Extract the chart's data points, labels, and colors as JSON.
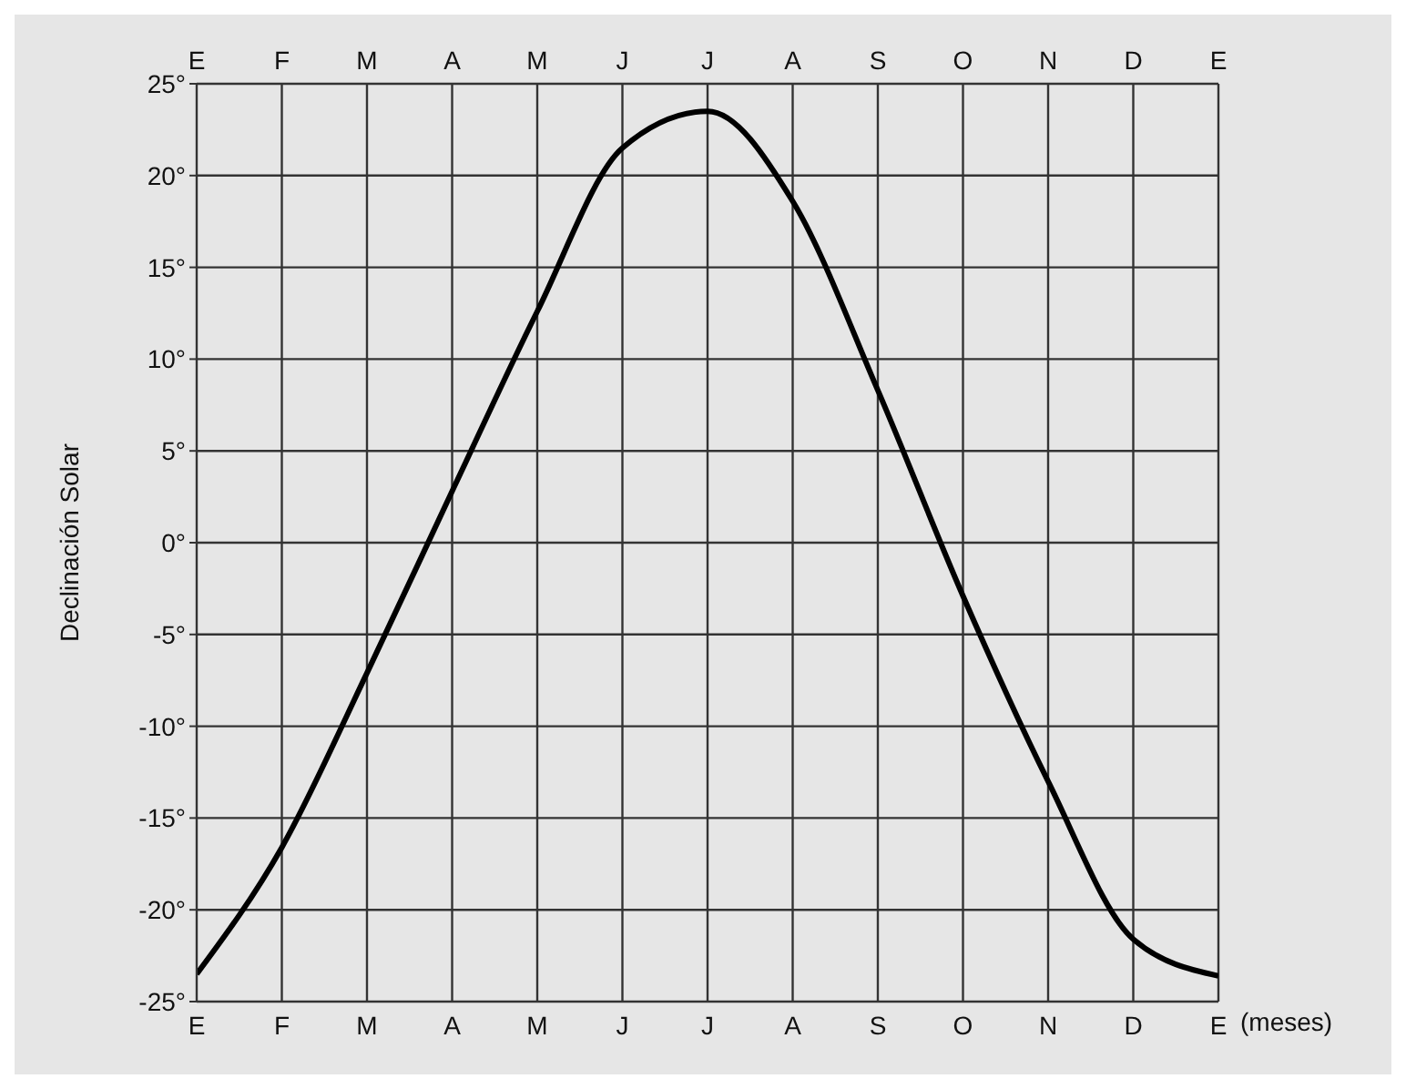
{
  "chart_data": {
    "type": "line",
    "xlabel": "(meses)",
    "ylabel": "Declinación Solar",
    "categories": [
      "E",
      "F",
      "M",
      "A",
      "M",
      "J",
      "J",
      "A",
      "S",
      "O",
      "N",
      "D",
      "E"
    ],
    "series": [
      {
        "color": "#000000",
        "values": [
          -23.5,
          -16.6,
          -7.1,
          2.8,
          12.6,
          21.5,
          23.5,
          18.6,
          8.3,
          -2.9,
          -13,
          -21.6,
          -23.6
        ]
      }
    ],
    "ylim": [
      -25,
      25
    ],
    "yticks": [
      {
        "value": -25,
        "label": "-25°"
      },
      {
        "value": -20,
        "label": "-20°"
      },
      {
        "value": -15,
        "label": "-15°"
      },
      {
        "value": -10,
        "label": "-10°"
      },
      {
        "value": -5,
        "label": "-5°"
      },
      {
        "value": 0,
        "label": "0°"
      },
      {
        "value": 5,
        "label": "5°"
      },
      {
        "value": 10,
        "label": "10°"
      },
      {
        "value": 15,
        "label": "15°"
      },
      {
        "value": 20,
        "label": "20°"
      },
      {
        "value": 25,
        "label": "25°"
      }
    ],
    "grid": true,
    "marker": "none",
    "line_style": "solid"
  }
}
